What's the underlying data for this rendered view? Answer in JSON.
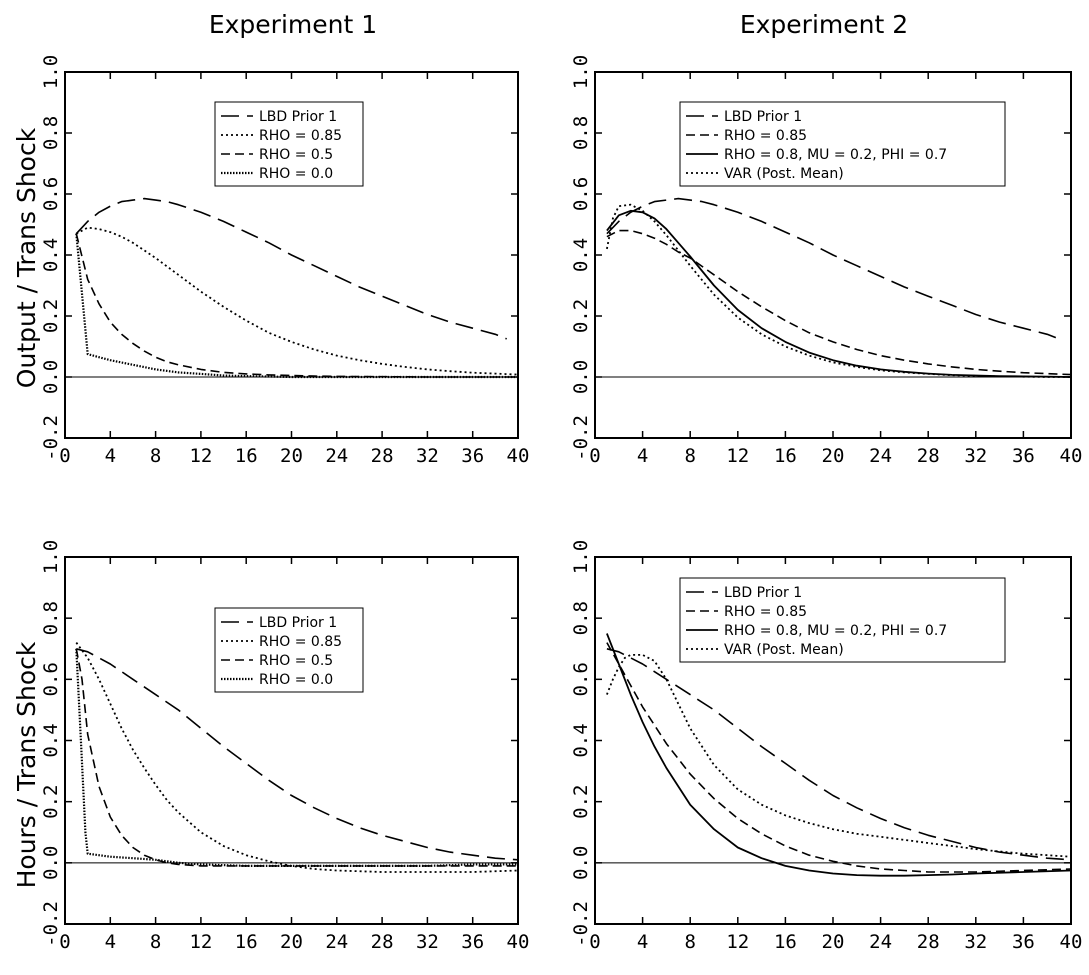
{
  "figure": {
    "col_titles": [
      "Experiment 1",
      "Experiment 2"
    ],
    "row_labels": [
      "Output / Trans Shock",
      "Hours / Trans Shock"
    ]
  },
  "chart_data": [
    {
      "type": "line",
      "panel": "top-left",
      "title": "Experiment 1",
      "ylabel": "Output / Trans Shock",
      "xlim": [
        0,
        40
      ],
      "ylim": [
        -0.2,
        1.0
      ],
      "xticks": [
        0,
        4,
        8,
        12,
        16,
        20,
        24,
        28,
        32,
        36,
        40
      ],
      "yticks": [
        -0.2,
        0.0,
        0.2,
        0.4,
        0.6,
        0.8,
        1.0
      ],
      "legend_position": "top-center",
      "zero_line": true,
      "series": [
        {
          "name": "LBD Prior 1",
          "style": "long-dash",
          "x": [
            1,
            2,
            3,
            4,
            5,
            6,
            7,
            8,
            9,
            10,
            12,
            14,
            16,
            18,
            20,
            22,
            24,
            26,
            28,
            30,
            32,
            34,
            36,
            38,
            39
          ],
          "values": [
            0.47,
            0.51,
            0.54,
            0.56,
            0.575,
            0.58,
            0.585,
            0.58,
            0.575,
            0.565,
            0.54,
            0.51,
            0.475,
            0.44,
            0.4,
            0.365,
            0.33,
            0.295,
            0.265,
            0.235,
            0.205,
            0.18,
            0.16,
            0.14,
            0.125
          ]
        },
        {
          "name": "RHO = 0.85",
          "style": "dotted",
          "x": [
            1,
            2,
            3,
            4,
            5,
            6,
            7,
            8,
            10,
            12,
            14,
            16,
            18,
            20,
            22,
            24,
            26,
            28,
            30,
            32,
            34,
            36,
            38,
            40
          ],
          "values": [
            0.47,
            0.49,
            0.485,
            0.475,
            0.46,
            0.44,
            0.415,
            0.39,
            0.335,
            0.28,
            0.23,
            0.185,
            0.145,
            0.115,
            0.09,
            0.07,
            0.055,
            0.043,
            0.033,
            0.025,
            0.019,
            0.014,
            0.011,
            0.008
          ]
        },
        {
          "name": "RHO = 0.5",
          "style": "dashed",
          "x": [
            1,
            2,
            3,
            4,
            5,
            6,
            7,
            8,
            9,
            10,
            12,
            14,
            16,
            18,
            20,
            22,
            24,
            28,
            32,
            36,
            40
          ],
          "values": [
            0.47,
            0.32,
            0.24,
            0.18,
            0.14,
            0.11,
            0.085,
            0.065,
            0.05,
            0.04,
            0.025,
            0.015,
            0.01,
            0.007,
            0.005,
            0.003,
            0.002,
            0.001,
            0.0,
            0.0,
            0.0
          ]
        },
        {
          "name": "RHO = 0.0",
          "style": "dash-dot",
          "x": [
            1,
            2,
            3,
            4,
            6,
            8,
            10,
            12,
            14,
            16,
            20,
            24,
            28,
            32,
            36,
            40
          ],
          "values": [
            0.47,
            0.075,
            0.065,
            0.055,
            0.04,
            0.025,
            0.015,
            0.01,
            0.005,
            0.003,
            0.0,
            0.0,
            0.0,
            0.0,
            0.0,
            0.0
          ]
        }
      ]
    },
    {
      "type": "line",
      "panel": "top-right",
      "title": "Experiment 2",
      "ylabel": "",
      "xlim": [
        0,
        40
      ],
      "ylim": [
        -0.2,
        1.0
      ],
      "xticks": [
        0,
        4,
        8,
        12,
        16,
        20,
        24,
        28,
        32,
        36,
        40
      ],
      "yticks": [
        -0.2,
        0.0,
        0.2,
        0.4,
        0.6,
        0.8,
        1.0
      ],
      "legend_position": "top-center",
      "zero_line": true,
      "series": [
        {
          "name": "LBD Prior 1",
          "style": "long-dash",
          "x": [
            1,
            2,
            3,
            4,
            5,
            6,
            7,
            8,
            9,
            10,
            12,
            14,
            16,
            18,
            20,
            22,
            24,
            26,
            28,
            30,
            32,
            34,
            36,
            38,
            39
          ],
          "values": [
            0.47,
            0.51,
            0.54,
            0.56,
            0.575,
            0.58,
            0.585,
            0.58,
            0.575,
            0.565,
            0.54,
            0.51,
            0.475,
            0.44,
            0.4,
            0.365,
            0.33,
            0.295,
            0.265,
            0.235,
            0.205,
            0.18,
            0.16,
            0.14,
            0.125
          ]
        },
        {
          "name": "RHO = 0.85",
          "style": "dashed",
          "x": [
            1,
            2,
            3,
            4,
            5,
            6,
            7,
            8,
            10,
            12,
            14,
            16,
            18,
            20,
            22,
            24,
            26,
            28,
            30,
            32,
            34,
            36,
            38,
            40
          ],
          "values": [
            0.46,
            0.48,
            0.48,
            0.47,
            0.455,
            0.435,
            0.41,
            0.39,
            0.335,
            0.28,
            0.23,
            0.185,
            0.145,
            0.115,
            0.09,
            0.07,
            0.055,
            0.043,
            0.033,
            0.025,
            0.019,
            0.014,
            0.011,
            0.008
          ]
        },
        {
          "name": "RHO = 0.8, MU = 0.2, PHI = 0.7",
          "style": "solid",
          "x": [
            1,
            2,
            3,
            4,
            5,
            6,
            7,
            8,
            10,
            12,
            14,
            16,
            18,
            20,
            22,
            24,
            26,
            28,
            30,
            32,
            34,
            36,
            38,
            40
          ],
          "values": [
            0.48,
            0.53,
            0.545,
            0.54,
            0.52,
            0.485,
            0.44,
            0.395,
            0.3,
            0.22,
            0.16,
            0.115,
            0.08,
            0.055,
            0.037,
            0.025,
            0.017,
            0.011,
            0.007,
            0.005,
            0.003,
            0.002,
            0.001,
            0.0
          ]
        },
        {
          "name": "VAR (Post. Mean)",
          "style": "dotted",
          "x": [
            1,
            1.5,
            2,
            3,
            4,
            5,
            6,
            7,
            8,
            10,
            12,
            14,
            16,
            18,
            20,
            22,
            24,
            26,
            28,
            30,
            32,
            34,
            36,
            38,
            40
          ],
          "values": [
            0.42,
            0.52,
            0.56,
            0.565,
            0.545,
            0.51,
            0.465,
            0.415,
            0.365,
            0.27,
            0.195,
            0.14,
            0.1,
            0.07,
            0.048,
            0.033,
            0.022,
            0.015,
            0.01,
            0.006,
            0.004,
            0.002,
            0.001,
            0.0,
            0.0
          ]
        }
      ]
    },
    {
      "type": "line",
      "panel": "bottom-left",
      "title": "",
      "ylabel": "Hours / Trans Shock",
      "xlim": [
        0,
        40
      ],
      "ylim": [
        -0.2,
        1.0
      ],
      "xticks": [
        0,
        4,
        8,
        12,
        16,
        20,
        24,
        28,
        32,
        36,
        40
      ],
      "yticks": [
        -0.2,
        0.0,
        0.2,
        0.4,
        0.6,
        0.8,
        1.0
      ],
      "legend_position": "top-right",
      "zero_line": true,
      "series": [
        {
          "name": "LBD Prior 1",
          "style": "long-dash",
          "x": [
            1,
            2,
            4,
            6,
            8,
            10,
            12,
            14,
            16,
            18,
            20,
            22,
            24,
            26,
            28,
            30,
            32,
            34,
            36,
            38,
            40
          ],
          "values": [
            0.7,
            0.69,
            0.65,
            0.6,
            0.55,
            0.5,
            0.44,
            0.38,
            0.325,
            0.27,
            0.22,
            0.18,
            0.145,
            0.115,
            0.09,
            0.07,
            0.05,
            0.035,
            0.025,
            0.015,
            0.01
          ]
        },
        {
          "name": "RHO = 0.85",
          "style": "dotted",
          "x": [
            1,
            2,
            3,
            4,
            5,
            6,
            7,
            8,
            9,
            10,
            12,
            14,
            16,
            18,
            20,
            22,
            24,
            28,
            32,
            36,
            40
          ],
          "values": [
            0.72,
            0.67,
            0.6,
            0.52,
            0.44,
            0.37,
            0.31,
            0.255,
            0.205,
            0.165,
            0.1,
            0.055,
            0.025,
            0.005,
            -0.01,
            -0.02,
            -0.025,
            -0.03,
            -0.03,
            -0.03,
            -0.025
          ]
        },
        {
          "name": "RHO = 0.5",
          "style": "dashed",
          "x": [
            1,
            1.5,
            2,
            3,
            4,
            5,
            6,
            7,
            8,
            9,
            10,
            12,
            14,
            16,
            20,
            24,
            28,
            32,
            36,
            40
          ],
          "values": [
            0.7,
            0.6,
            0.42,
            0.25,
            0.15,
            0.09,
            0.05,
            0.025,
            0.01,
            0.0,
            -0.005,
            -0.01,
            -0.01,
            -0.01,
            -0.01,
            -0.01,
            -0.01,
            -0.01,
            -0.01,
            -0.01
          ]
        },
        {
          "name": "RHO = 0.0",
          "style": "dash-dot",
          "x": [
            1,
            1.4,
            1.8,
            2,
            3,
            4,
            6,
            8,
            10,
            12,
            16,
            20,
            24,
            28,
            32,
            36,
            40
          ],
          "values": [
            0.7,
            0.4,
            0.1,
            0.03,
            0.025,
            0.02,
            0.015,
            0.01,
            0.0,
            -0.005,
            -0.01,
            -0.01,
            -0.01,
            -0.01,
            -0.01,
            -0.005,
            -0.005
          ]
        }
      ]
    },
    {
      "type": "line",
      "panel": "bottom-right",
      "title": "",
      "ylabel": "",
      "xlim": [
        0,
        40
      ],
      "ylim": [
        -0.2,
        1.0
      ],
      "xticks": [
        0,
        4,
        8,
        12,
        16,
        20,
        24,
        28,
        32,
        36,
        40
      ],
      "yticks": [
        -0.2,
        0.0,
        0.2,
        0.4,
        0.6,
        0.8,
        1.0
      ],
      "legend_position": "top-center",
      "zero_line": true,
      "series": [
        {
          "name": "LBD Prior 1",
          "style": "long-dash",
          "x": [
            1,
            2,
            4,
            6,
            8,
            10,
            12,
            14,
            16,
            18,
            20,
            22,
            24,
            26,
            28,
            30,
            32,
            34,
            36,
            38,
            40
          ],
          "values": [
            0.7,
            0.69,
            0.65,
            0.6,
            0.55,
            0.5,
            0.44,
            0.38,
            0.325,
            0.27,
            0.22,
            0.18,
            0.145,
            0.115,
            0.09,
            0.07,
            0.05,
            0.035,
            0.025,
            0.015,
            0.01
          ]
        },
        {
          "name": "RHO = 0.85",
          "style": "dashed",
          "x": [
            1,
            2,
            3,
            4,
            5,
            6,
            7,
            8,
            10,
            12,
            14,
            16,
            18,
            20,
            22,
            24,
            26,
            28,
            30,
            32,
            36,
            40
          ],
          "values": [
            0.72,
            0.65,
            0.58,
            0.51,
            0.45,
            0.39,
            0.34,
            0.29,
            0.21,
            0.145,
            0.095,
            0.055,
            0.025,
            0.005,
            -0.01,
            -0.02,
            -0.025,
            -0.03,
            -0.03,
            -0.03,
            -0.025,
            -0.02
          ]
        },
        {
          "name": "RHO = 0.8, MU = 0.2, PHI = 0.7",
          "style": "solid",
          "x": [
            1,
            2,
            3,
            4,
            5,
            6,
            7,
            8,
            10,
            12,
            14,
            16,
            18,
            20,
            22,
            24,
            26,
            28,
            30,
            32,
            36,
            40
          ],
          "values": [
            0.75,
            0.65,
            0.55,
            0.46,
            0.38,
            0.31,
            0.25,
            0.19,
            0.11,
            0.05,
            0.015,
            -0.01,
            -0.025,
            -0.035,
            -0.04,
            -0.042,
            -0.042,
            -0.04,
            -0.038,
            -0.035,
            -0.03,
            -0.025
          ]
        },
        {
          "name": "VAR (Post. Mean)",
          "style": "dotted",
          "x": [
            1,
            1.5,
            2,
            2.5,
            3,
            4,
            5,
            6,
            7,
            8,
            10,
            12,
            14,
            16,
            18,
            20,
            22,
            24,
            26,
            28,
            30,
            32,
            34,
            36,
            38,
            40
          ],
          "values": [
            0.55,
            0.6,
            0.64,
            0.67,
            0.68,
            0.68,
            0.66,
            0.6,
            0.52,
            0.44,
            0.32,
            0.24,
            0.19,
            0.155,
            0.13,
            0.11,
            0.095,
            0.085,
            0.075,
            0.065,
            0.055,
            0.045,
            0.037,
            0.03,
            0.025,
            0.02
          ]
        }
      ]
    }
  ]
}
